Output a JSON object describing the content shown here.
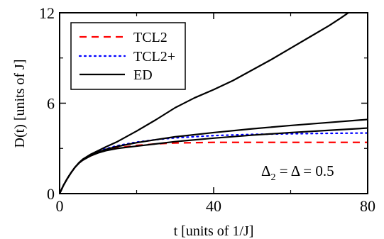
{
  "chart_data": {
    "type": "line",
    "xlabel": "t [units of 1/J]",
    "ylabel": "D(t) [units of J]",
    "xlim": [
      0,
      80
    ],
    "ylim": [
      0,
      12
    ],
    "xticks": [
      0,
      40,
      80
    ],
    "yticks": [
      0,
      6,
      12
    ],
    "grid": false,
    "legend_position": "top-left",
    "annotation": {
      "main": "Δ",
      "sub": "2",
      "rest": " = Δ = 0.5"
    },
    "series": [
      {
        "name": "TCL2",
        "style": "dashed",
        "color": "#ff0000",
        "points": [
          [
            0,
            0
          ],
          [
            1,
            0.55
          ],
          [
            2,
            1.0
          ],
          [
            3,
            1.4
          ],
          [
            4,
            1.75
          ],
          [
            5,
            2.02
          ],
          [
            6,
            2.22
          ],
          [
            8,
            2.5
          ],
          [
            10,
            2.72
          ],
          [
            12,
            2.88
          ],
          [
            15,
            3.03
          ],
          [
            20,
            3.2
          ],
          [
            25,
            3.3
          ],
          [
            30,
            3.36
          ],
          [
            40,
            3.4
          ],
          [
            60,
            3.4
          ],
          [
            80,
            3.4
          ]
        ]
      },
      {
        "name": "TCL2+",
        "style": "dotted",
        "color": "#0000ff",
        "points": [
          [
            0,
            0
          ],
          [
            1,
            0.55
          ],
          [
            2,
            1.0
          ],
          [
            3,
            1.4
          ],
          [
            4,
            1.75
          ],
          [
            5,
            2.02
          ],
          [
            6,
            2.22
          ],
          [
            8,
            2.52
          ],
          [
            10,
            2.78
          ],
          [
            12,
            2.98
          ],
          [
            15,
            3.18
          ],
          [
            20,
            3.42
          ],
          [
            25,
            3.58
          ],
          [
            30,
            3.7
          ],
          [
            40,
            3.85
          ],
          [
            50,
            3.93
          ],
          [
            60,
            3.97
          ],
          [
            70,
            4.0
          ],
          [
            80,
            4.02
          ]
        ]
      },
      {
        "name": "ED",
        "style": "solid",
        "color": "#000000",
        "points": [
          [
            0,
            0
          ],
          [
            1,
            0.55
          ],
          [
            2,
            1.0
          ],
          [
            3,
            1.4
          ],
          [
            4,
            1.75
          ],
          [
            5,
            2.02
          ],
          [
            6,
            2.22
          ],
          [
            8,
            2.5
          ],
          [
            10,
            2.7
          ],
          [
            12,
            2.85
          ],
          [
            15,
            3.0
          ],
          [
            20,
            3.15
          ],
          [
            25,
            3.3
          ],
          [
            30,
            3.45
          ],
          [
            40,
            3.68
          ],
          [
            50,
            3.88
          ],
          [
            60,
            4.05
          ],
          [
            70,
            4.2
          ],
          [
            80,
            4.35
          ]
        ]
      },
      {
        "name": "",
        "style": "solid",
        "color": "#000000",
        "points": [
          [
            0,
            0
          ],
          [
            1,
            0.55
          ],
          [
            2,
            1.0
          ],
          [
            3,
            1.4
          ],
          [
            4,
            1.75
          ],
          [
            5,
            2.02
          ],
          [
            6,
            2.22
          ],
          [
            8,
            2.52
          ],
          [
            10,
            2.75
          ],
          [
            12,
            2.93
          ],
          [
            15,
            3.13
          ],
          [
            20,
            3.38
          ],
          [
            25,
            3.58
          ],
          [
            30,
            3.77
          ],
          [
            40,
            4.05
          ],
          [
            50,
            4.3
          ],
          [
            60,
            4.52
          ],
          [
            70,
            4.72
          ],
          [
            80,
            4.92
          ]
        ]
      },
      {
        "name": "",
        "style": "solid",
        "color": "#000000",
        "points": [
          [
            0,
            0
          ],
          [
            1,
            0.55
          ],
          [
            2,
            1.0
          ],
          [
            3,
            1.4
          ],
          [
            4,
            1.75
          ],
          [
            5,
            2.05
          ],
          [
            6,
            2.28
          ],
          [
            8,
            2.6
          ],
          [
            10,
            2.85
          ],
          [
            12,
            3.1
          ],
          [
            15,
            3.45
          ],
          [
            20,
            4.15
          ],
          [
            25,
            4.9
          ],
          [
            30,
            5.7
          ],
          [
            35,
            6.35
          ],
          [
            40,
            6.9
          ],
          [
            45,
            7.5
          ],
          [
            50,
            8.2
          ],
          [
            55,
            8.9
          ],
          [
            60,
            9.65
          ],
          [
            65,
            10.4
          ],
          [
            70,
            11.15
          ],
          [
            73,
            11.65
          ],
          [
            75,
            12.0
          ]
        ]
      }
    ]
  }
}
